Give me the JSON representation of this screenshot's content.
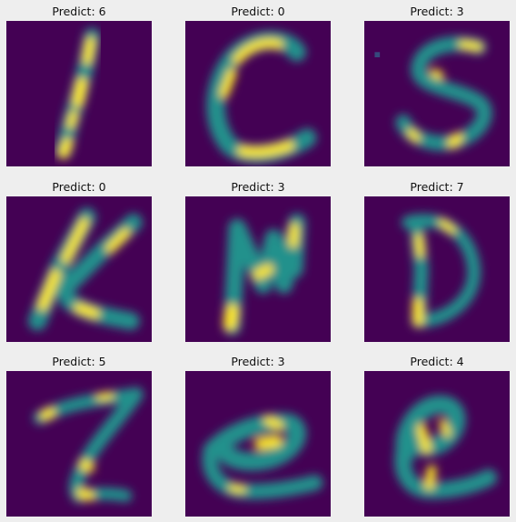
{
  "figure": {
    "background": "#eeeeee",
    "colormap": "viridis",
    "panels": [
      {
        "title": "Predict: 6",
        "depicts": "handwritten stroke resembling 'I' / '1'"
      },
      {
        "title": "Predict: 0",
        "depicts": "handwritten letter 'C'"
      },
      {
        "title": "Predict: 3",
        "depicts": "handwritten letter 'S'"
      },
      {
        "title": "Predict: 0",
        "depicts": "handwritten letter 'K'"
      },
      {
        "title": "Predict: 3",
        "depicts": "handwritten letter 'N'"
      },
      {
        "title": "Predict: 7",
        "depicts": "handwritten letter 'D'"
      },
      {
        "title": "Predict: 5",
        "depicts": "handwritten letter 'Z'"
      },
      {
        "title": "Predict: 3",
        "depicts": "handwritten lowercase 'e'"
      },
      {
        "title": "Predict: 4",
        "depicts": "handwritten lowercase 'e'"
      }
    ]
  }
}
